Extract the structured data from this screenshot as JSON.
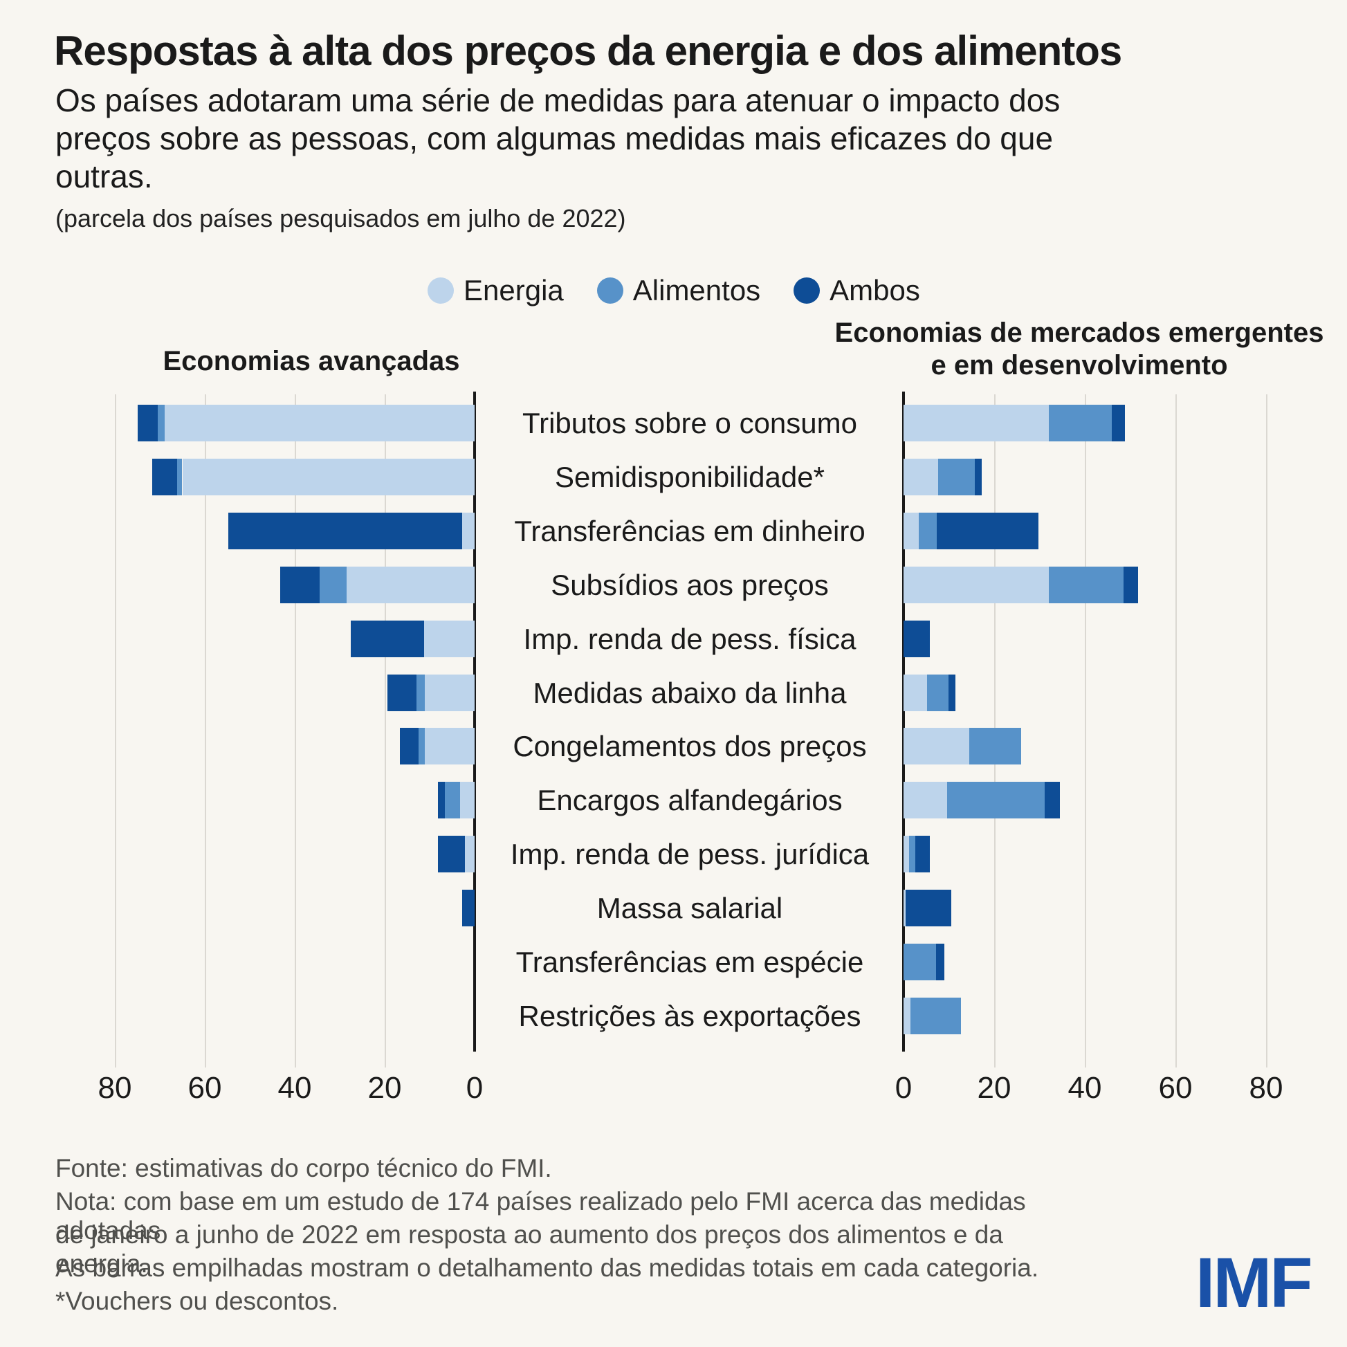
{
  "title": "Respostas à alta dos preços da energia e dos alimentos",
  "subtitle": "Os países adotaram uma série de medidas para atenuar o impacto dos preços sobre as pessoas, com algumas medidas mais eficazes do que outras.",
  "note": "(parcela dos países pesquisados em julho de 2022)",
  "legend": {
    "items": [
      {
        "label": "Energia",
        "color": "#BDD4EB"
      },
      {
        "label": "Alimentos",
        "color": "#5792C9"
      },
      {
        "label": "Ambos",
        "color": "#0E4D96"
      }
    ]
  },
  "panels": {
    "left_title": "Economias avançadas",
    "right_title_line1": "Economias de mercados emergentes",
    "right_title_line2": "e em desenvolvimento"
  },
  "chart_data": {
    "type": "bar",
    "variant": "diverging-stacked-horizontal",
    "unit": "% dos países pesquisados em julho de 2022",
    "left_panel": "Economias avançadas",
    "right_panel": "Economias de mercados emergentes e em desenvolvimento",
    "series_names": [
      "Energia",
      "Alimentos",
      "Ambos"
    ],
    "axis": {
      "left_ticks": [
        80,
        60,
        40,
        20,
        0
      ],
      "right_ticks": [
        0,
        20,
        40,
        60,
        80
      ],
      "max": 80,
      "grid": true
    },
    "rows": [
      {
        "label": "Tributos sobre o consumo",
        "advanced": [
          69,
          1.5,
          4.5
        ],
        "emde": [
          32,
          14,
          2.8
        ]
      },
      {
        "label": "Semidisponibilidade*",
        "advanced": [
          65,
          1.2,
          5.5
        ],
        "emde": [
          7.7,
          8,
          1.5
        ]
      },
      {
        "label": "Transferências em dinheiro",
        "advanced": [
          2.7,
          0,
          52
        ],
        "emde": [
          3.4,
          3.9,
          22.4
        ]
      },
      {
        "label": "Subsídios aos preços",
        "advanced": [
          28.5,
          6,
          8.7
        ],
        "emde": [
          32,
          16.5,
          3.2
        ]
      },
      {
        "label": "Imp. renda de pess. física",
        "advanced": [
          11.2,
          0,
          16.4
        ],
        "emde": [
          0,
          0,
          5.8
        ]
      },
      {
        "label": "Medidas abaixo da linha",
        "advanced": [
          11.1,
          1.8,
          6.5
        ],
        "emde": [
          5.2,
          4.7,
          1.5
        ]
      },
      {
        "label": "Congelamentos dos preços",
        "advanced": [
          11.1,
          1.3,
          4.2
        ],
        "emde": [
          14.5,
          11.4,
          0
        ]
      },
      {
        "label": "Encargos alfandegários",
        "advanced": [
          3.3,
          3.3,
          1.6
        ],
        "emde": [
          9.6,
          21.5,
          3.4
        ]
      },
      {
        "label": "Imp. renda de pess. jurídica",
        "advanced": [
          2.2,
          0,
          6
        ],
        "emde": [
          1.2,
          1.4,
          3.2
        ]
      },
      {
        "label": "Massa salarial",
        "advanced": [
          0,
          0,
          2.7
        ],
        "emde": [
          0.5,
          0,
          10.1
        ]
      },
      {
        "label": "Transferências em espécie",
        "advanced": [
          0,
          0,
          0
        ],
        "emde": [
          0,
          7.2,
          1.8
        ]
      },
      {
        "label": "Restrições às exportações",
        "advanced": [
          0,
          0,
          0
        ],
        "emde": [
          1.5,
          11.2,
          0
        ]
      }
    ]
  },
  "footer": {
    "lines": [
      "Fonte: estimativas do corpo técnico do FMI.",
      "Nota: com base em um estudo de 174 países realizado pelo FMI acerca das medidas adotadas",
      "de janeiro a junho de 2022 em resposta ao aumento dos preços dos alimentos e da energia.",
      "As barras empilhadas mostram o detalhamento das medidas totais em cada categoria.",
      "*Vouchers ou descontos."
    ]
  },
  "logo_text": "IMF"
}
